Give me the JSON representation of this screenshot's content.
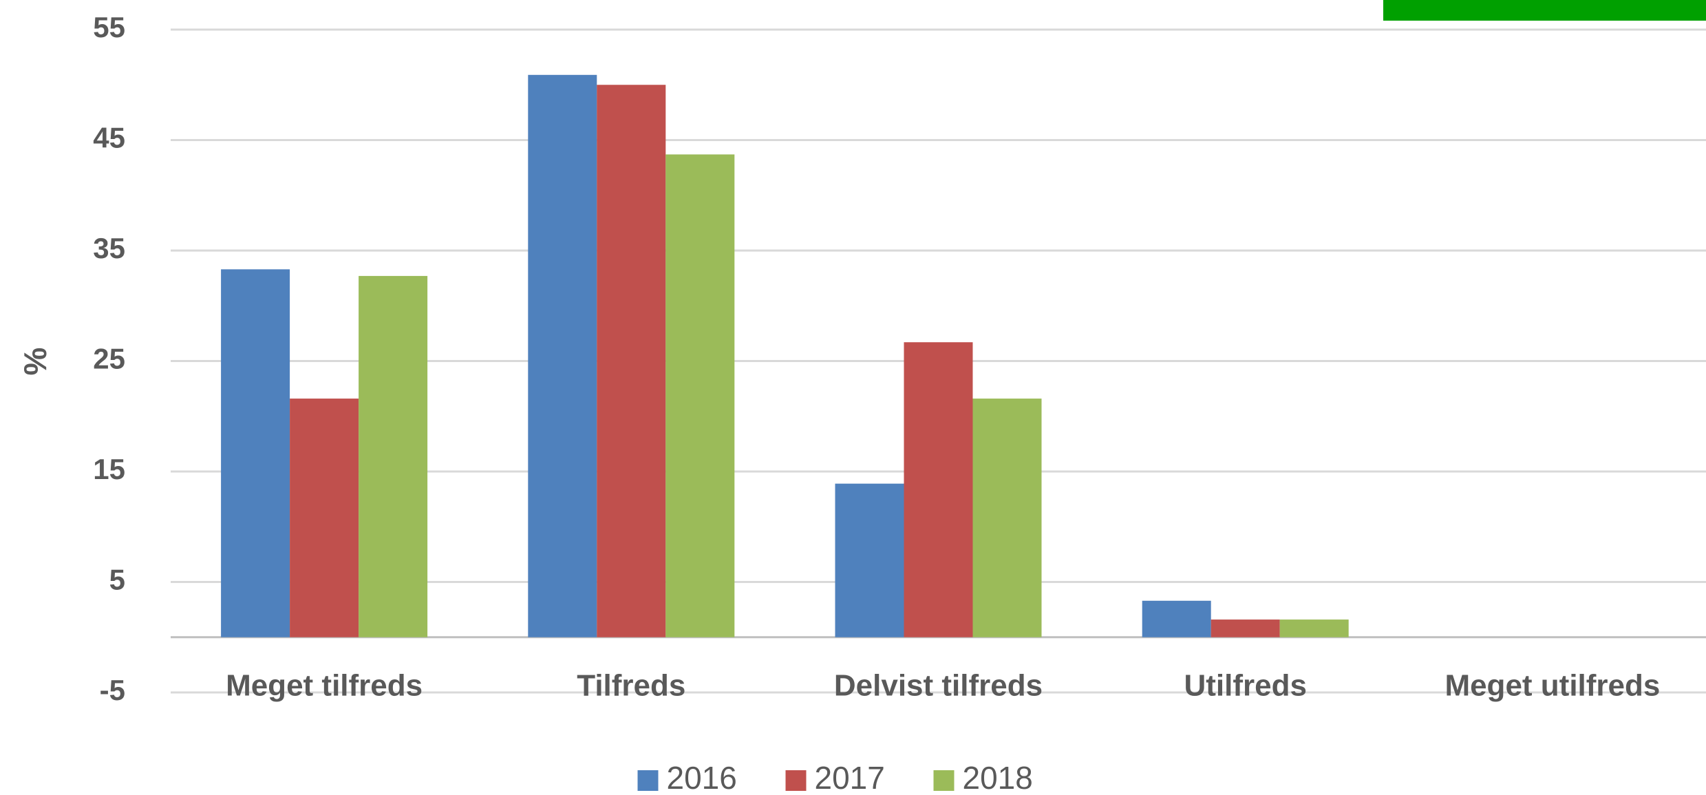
{
  "chart_data": {
    "type": "bar",
    "y_label": "%",
    "categories": [
      "Meget tilfreds",
      "Tilfreds",
      "Delvist tilfreds",
      "Utilfreds",
      "Meget utilfreds"
    ],
    "series": [
      {
        "name": "2016",
        "color": "#4f81bd",
        "values": [
          33.3,
          50.9,
          13.9,
          3.3,
          0
        ]
      },
      {
        "name": "2017",
        "color": "#c0504d",
        "values": [
          21.6,
          50.0,
          26.7,
          1.6,
          0
        ]
      },
      {
        "name": "2018",
        "color": "#9bbb59",
        "values": [
          32.7,
          43.7,
          21.6,
          1.6,
          0
        ]
      }
    ],
    "ylim": [
      -5,
      55
    ],
    "yticks": [
      -5,
      5,
      15,
      25,
      35,
      45,
      55
    ],
    "grid": true,
    "legend": "bottom"
  }
}
